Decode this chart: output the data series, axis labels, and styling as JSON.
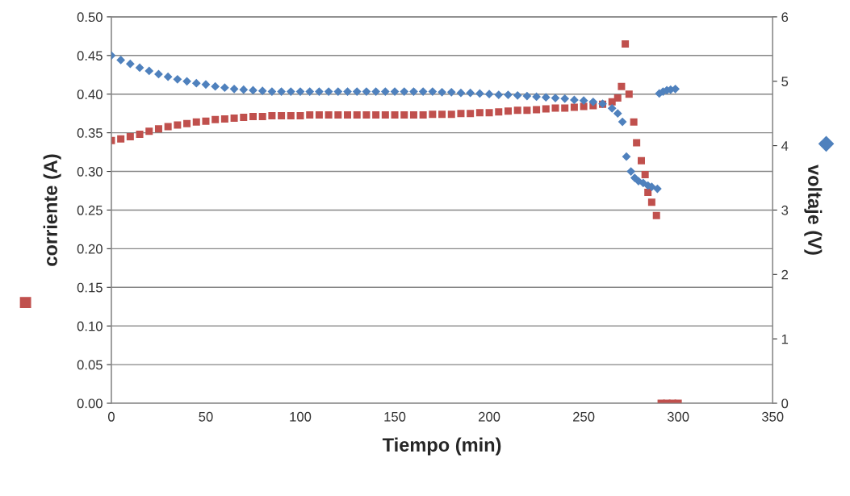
{
  "chart_data": {
    "type": "scatter",
    "xlabel": "Tiempo (min)",
    "ylabel": "corriente (A)",
    "y2label": "voltaje (V)",
    "xlim": [
      0,
      350
    ],
    "xticks": [
      0,
      50,
      100,
      150,
      200,
      250,
      300,
      350
    ],
    "ylim": [
      0,
      0.5
    ],
    "yticks": [
      {
        "value": 0,
        "label": "0.00"
      },
      {
        "value": 0.05,
        "label": "0.05"
      },
      {
        "value": 0.1,
        "label": "0.10"
      },
      {
        "value": 0.15,
        "label": "0.15"
      },
      {
        "value": 0.2,
        "label": "0.20"
      },
      {
        "value": 0.25,
        "label": "0.25"
      },
      {
        "value": 0.3,
        "label": "0.30"
      },
      {
        "value": 0.35,
        "label": "0.35"
      },
      {
        "value": 0.4,
        "label": "0.40"
      },
      {
        "value": 0.45,
        "label": "0.45"
      },
      {
        "value": 0.5,
        "label": "0.50"
      }
    ],
    "y2lim": [
      0,
      6
    ],
    "y2ticks": [
      0,
      1,
      2,
      3,
      4,
      5,
      6
    ],
    "grid": "y",
    "legend": false,
    "series": [
      {
        "color": "#c0504d",
        "marker": "square",
        "x": [
          0,
          5,
          10,
          15,
          20,
          25,
          30,
          35,
          40,
          45,
          50,
          55,
          60,
          65,
          70,
          75,
          80,
          85,
          90,
          95,
          100,
          105,
          110,
          115,
          120,
          125,
          130,
          135,
          140,
          145,
          150,
          155,
          160,
          165,
          170,
          175,
          180,
          185,
          190,
          195,
          200,
          205,
          210,
          215,
          220,
          225,
          230,
          235,
          240,
          245,
          250,
          255,
          260,
          265,
          268,
          270,
          272,
          274,
          276.5,
          278,
          280.5,
          282.5,
          284,
          286,
          288.5,
          291,
          294,
          297,
          300
        ],
        "values": [
          0.34,
          0.342,
          0.345,
          0.348,
          0.352,
          0.355,
          0.358,
          0.36,
          0.362,
          0.364,
          0.365,
          0.367,
          0.368,
          0.369,
          0.37,
          0.371,
          0.371,
          0.372,
          0.372,
          0.372,
          0.372,
          0.373,
          0.373,
          0.373,
          0.373,
          0.373,
          0.373,
          0.373,
          0.373,
          0.373,
          0.373,
          0.373,
          0.373,
          0.373,
          0.374,
          0.374,
          0.374,
          0.375,
          0.375,
          0.376,
          0.376,
          0.377,
          0.378,
          0.379,
          0.379,
          0.38,
          0.381,
          0.382,
          0.382,
          0.383,
          0.384,
          0.385,
          0.387,
          0.39,
          0.395,
          0.41,
          0.465,
          0.4,
          0.364,
          0.337,
          0.314,
          0.296,
          0.273,
          0.26,
          0.243,
          0,
          0,
          0,
          0
        ]
      },
      {
        "color": "#4f81bd",
        "marker": "diamond",
        "axis": "y2",
        "x": [
          0,
          5,
          10,
          15,
          20,
          25,
          30,
          35,
          40,
          45,
          50,
          55,
          60,
          65,
          70,
          75,
          80,
          85,
          90,
          95,
          100,
          105,
          110,
          115,
          120,
          125,
          130,
          135,
          140,
          145,
          150,
          155,
          160,
          165,
          170,
          175,
          180,
          185,
          190,
          195,
          200,
          205,
          210,
          215,
          220,
          225,
          230,
          235,
          240,
          245,
          250,
          255,
          260,
          265,
          268,
          270.5,
          272.6,
          275,
          277,
          279,
          281.5,
          284,
          286,
          289,
          290,
          292,
          294,
          296,
          298.5
        ],
        "values": [
          5.4,
          5.33,
          5.27,
          5.21,
          5.16,
          5.11,
          5.07,
          5.03,
          5.0,
          4.97,
          4.95,
          4.92,
          4.9,
          4.88,
          4.87,
          4.86,
          4.85,
          4.84,
          4.84,
          4.84,
          4.84,
          4.84,
          4.84,
          4.84,
          4.84,
          4.84,
          4.84,
          4.84,
          4.84,
          4.84,
          4.84,
          4.84,
          4.84,
          4.84,
          4.84,
          4.83,
          4.83,
          4.82,
          4.82,
          4.81,
          4.8,
          4.79,
          4.79,
          4.78,
          4.77,
          4.76,
          4.75,
          4.74,
          4.73,
          4.71,
          4.7,
          4.68,
          4.65,
          4.58,
          4.5,
          4.37,
          3.83,
          3.6,
          3.5,
          3.45,
          3.42,
          3.38,
          3.36,
          3.33,
          4.81,
          4.84,
          4.86,
          4.87,
          4.88
        ]
      }
    ]
  }
}
